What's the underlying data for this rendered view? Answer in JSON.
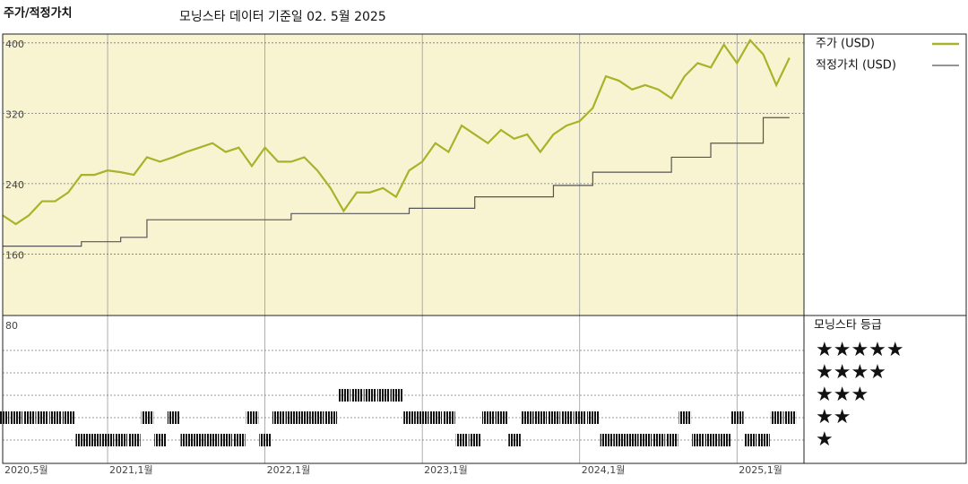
{
  "header": {
    "title": "주가/적정가치",
    "subtitle": "모닝스타 데이터 기준일 02. 5월 2025"
  },
  "chart_data": [
    {
      "type": "line",
      "x": [
        "2020-05",
        "2020-06",
        "2020-07",
        "2020-08",
        "2020-09",
        "2020-10",
        "2020-11",
        "2020-12",
        "2021-01",
        "2021-02",
        "2021-03",
        "2021-04",
        "2021-05",
        "2021-06",
        "2021-07",
        "2021-08",
        "2021-09",
        "2021-10",
        "2021-11",
        "2021-12",
        "2022-01",
        "2022-02",
        "2022-03",
        "2022-04",
        "2022-05",
        "2022-06",
        "2022-07",
        "2022-08",
        "2022-09",
        "2022-10",
        "2022-11",
        "2022-12",
        "2023-01",
        "2023-02",
        "2023-03",
        "2023-04",
        "2023-05",
        "2023-06",
        "2023-07",
        "2023-08",
        "2023-09",
        "2023-10",
        "2023-11",
        "2023-12",
        "2024-01",
        "2024-02",
        "2024-03",
        "2024-04",
        "2024-05",
        "2024-06",
        "2024-07",
        "2024-08",
        "2024-09",
        "2024-10",
        "2024-11",
        "2024-12",
        "2025-01",
        "2025-02",
        "2025-03",
        "2025-04",
        "2025-05"
      ],
      "series": [
        {
          "name": "주가 (USD)",
          "color": "#a9b22b",
          "values": [
            204,
            194,
            204,
            220,
            220,
            230,
            250,
            250,
            255,
            253,
            250,
            270,
            265,
            270,
            276,
            281,
            286,
            276,
            281,
            260,
            281,
            265,
            265,
            270,
            255,
            235,
            209,
            230,
            230,
            235,
            225,
            255,
            265,
            286,
            276,
            306,
            296,
            286,
            301,
            291,
            296,
            276,
            296,
            306,
            311,
            326,
            362,
            357,
            347,
            352,
            347,
            337,
            362,
            377,
            372,
            398,
            377,
            403,
            387,
            352,
            383
          ]
        },
        {
          "name": "적정가치 (USD)",
          "color": "#555555",
          "step": true,
          "values": [
            169,
            169,
            169,
            169,
            169,
            169,
            174,
            174,
            174,
            179,
            179,
            199,
            199,
            199,
            199,
            199,
            199,
            199,
            199,
            199,
            199,
            199,
            206,
            206,
            206,
            206,
            206,
            206,
            206,
            206,
            206,
            212,
            212,
            212,
            212,
            212,
            225,
            225,
            225,
            225,
            225,
            225,
            238,
            238,
            238,
            253,
            253,
            253,
            253,
            253,
            253,
            270,
            270,
            270,
            286,
            286,
            286,
            286,
            315,
            315,
            315
          ]
        }
      ],
      "ylim": [
        80,
        410
      ],
      "yticks": [
        80,
        160,
        240,
        320,
        400
      ],
      "xticks": [
        {
          "value": "2020-05",
          "label": "2020,5월"
        },
        {
          "value": "2021-01",
          "label": "2021,1월"
        },
        {
          "value": "2022-01",
          "label": "2022,1월"
        },
        {
          "value": "2023-01",
          "label": "2023,1월"
        },
        {
          "value": "2024-01",
          "label": "2024,1월"
        },
        {
          "value": "2025-01",
          "label": "2025,1월"
        }
      ],
      "grid": true
    },
    {
      "type": "rating",
      "title": "모닝스타 등급",
      "color": "#111111",
      "values": [
        2,
        2,
        2,
        2,
        2,
        2,
        1,
        1,
        1,
        1,
        1,
        2,
        1,
        2,
        1,
        1,
        1,
        1,
        1,
        2,
        1,
        2,
        2,
        2,
        2,
        2,
        3,
        3,
        3,
        3,
        3,
        2,
        2,
        2,
        2,
        1,
        1,
        2,
        2,
        1,
        2,
        2,
        2,
        2,
        2,
        2,
        1,
        1,
        1,
        1,
        1,
        1,
        2,
        1,
        1,
        1,
        2,
        1,
        1,
        2,
        2
      ],
      "ylim": [
        0,
        6.56
      ],
      "yticks": [
        {
          "value": 5,
          "label": "★★★★★"
        },
        {
          "value": 4,
          "label": "★★★★"
        },
        {
          "value": 3,
          "label": "★★★"
        },
        {
          "value": 2,
          "label": "★★"
        },
        {
          "value": 1,
          "label": "★"
        }
      ]
    }
  ]
}
